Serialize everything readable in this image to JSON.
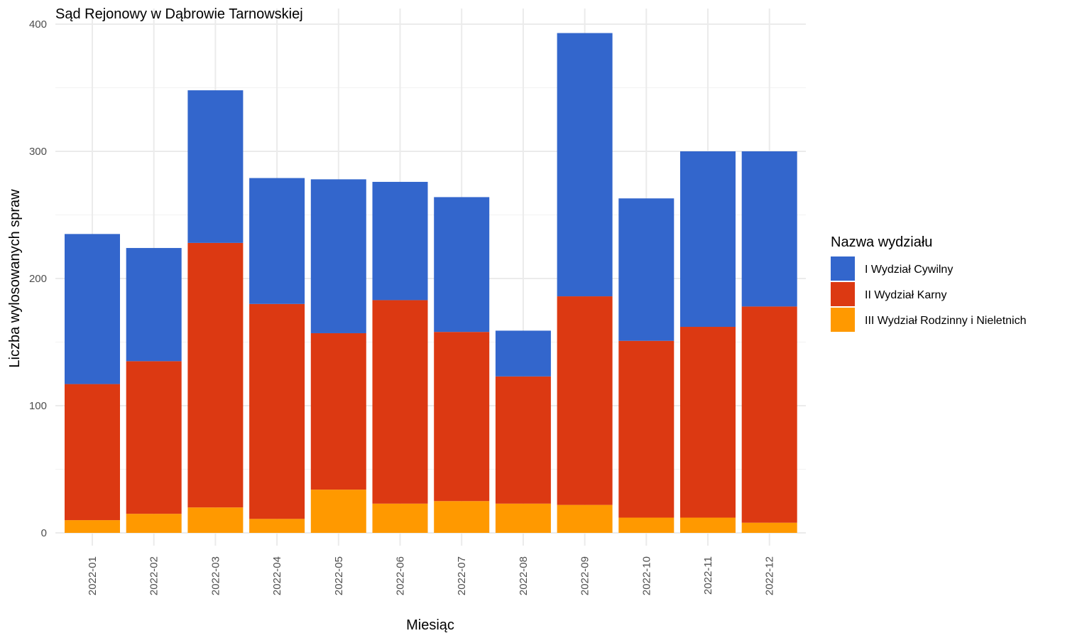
{
  "chart_data": {
    "type": "bar",
    "stacked": true,
    "title": "Sąd Rejonowy w Dąbrowie Tarnowskiej",
    "xlabel": "Miesiąc",
    "ylabel": "Liczba wylosowanych spraw",
    "ylim": [
      0,
      400
    ],
    "yticks": [
      0,
      100,
      200,
      300,
      400
    ],
    "grid": true,
    "legend_position": "right",
    "legend_title": "Nazwa wydziału",
    "categories": [
      "2022-01",
      "2022-02",
      "2022-03",
      "2022-04",
      "2022-05",
      "2022-06",
      "2022-07",
      "2022-08",
      "2022-09",
      "2022-10",
      "2022-11",
      "2022-12"
    ],
    "series": [
      {
        "name": "I Wydział Cywilny",
        "color": "#3366cc",
        "values": [
          118,
          89,
          120,
          99,
          121,
          93,
          106,
          36,
          207,
          112,
          138,
          122
        ]
      },
      {
        "name": "II Wydział Karny",
        "color": "#dc3912",
        "values": [
          107,
          120,
          208,
          169,
          123,
          160,
          133,
          100,
          164,
          139,
          150,
          170
        ]
      },
      {
        "name": "III Wydział Rodzinny i Nieletnich",
        "color": "#ff9900",
        "values": [
          10,
          15,
          20,
          11,
          34,
          23,
          25,
          23,
          22,
          12,
          12,
          8
        ]
      }
    ]
  }
}
